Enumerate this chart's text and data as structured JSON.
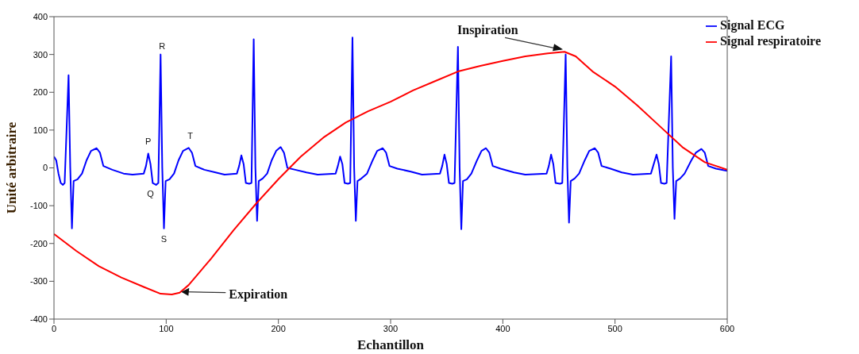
{
  "chart_data": {
    "type": "line",
    "xlabel": "Echantillon",
    "ylabel": "Unité arbitraire",
    "xlim": [
      0,
      600
    ],
    "xticks": [
      0,
      100,
      200,
      300,
      400,
      500,
      600
    ],
    "ylim": [
      -400,
      400
    ],
    "yticks": [
      -400,
      -300,
      -200,
      -100,
      0,
      100,
      200,
      300,
      400
    ],
    "legend": "top right",
    "marker": "none",
    "line_style": "solid",
    "series": [
      {
        "name": "Signal ECG",
        "color": "#0000ff",
        "x": [
          0,
          2,
          4,
          6,
          8,
          9.5,
          13,
          14.5,
          16,
          17.5,
          21,
          25,
          29,
          33,
          38,
          41,
          44,
          52,
          62,
          70,
          80,
          82,
          84,
          86,
          88,
          91,
          93,
          95,
          96.5,
          98,
          99.5,
          103,
          107,
          111,
          115,
          120,
          123,
          126,
          134,
          144,
          152,
          163,
          165,
          167,
          169,
          171,
          174,
          176,
          178,
          179.5,
          181,
          182.5,
          186,
          190,
          194,
          198,
          202,
          205,
          208,
          215,
          225,
          235,
          251,
          253,
          255,
          257,
          259,
          262,
          264,
          266,
          267.5,
          269,
          270.5,
          274,
          279,
          284,
          288,
          293,
          296,
          299,
          306,
          318,
          328,
          344,
          346,
          348,
          350,
          352,
          355,
          357,
          360,
          361.5,
          363,
          364.5,
          368,
          372,
          377,
          381,
          385,
          388,
          391,
          398,
          410,
          420,
          439,
          441,
          443,
          445,
          447,
          451,
          453,
          456,
          457.5,
          459,
          460.5,
          464,
          468,
          473,
          477,
          482,
          485,
          488,
          496,
          506,
          516,
          532,
          534,
          537,
          539,
          541,
          544,
          546,
          550,
          551.5,
          553,
          554.5,
          558,
          562,
          568,
          572,
          577,
          580,
          583,
          590,
          600
        ],
        "values": [
          30,
          20,
          -15,
          -40,
          -45,
          -40,
          245,
          0,
          -160,
          -35,
          -30,
          -15,
          20,
          45,
          52,
          40,
          5,
          -5,
          -15,
          -18,
          -15,
          5,
          38,
          10,
          -40,
          -45,
          -40,
          300,
          0,
          -160,
          -35,
          -30,
          -15,
          20,
          45,
          53,
          40,
          5,
          -5,
          -12,
          -18,
          -15,
          5,
          33,
          10,
          -40,
          -42,
          -40,
          340,
          0,
          -140,
          -35,
          -28,
          -15,
          20,
          45,
          55,
          40,
          0,
          -5,
          -12,
          -18,
          -15,
          5,
          30,
          10,
          -40,
          -42,
          -40,
          345,
          0,
          -140,
          -35,
          -28,
          -15,
          20,
          45,
          52,
          40,
          5,
          -2,
          -10,
          -18,
          -15,
          5,
          35,
          10,
          -40,
          -42,
          -40,
          320,
          0,
          -162,
          -35,
          -30,
          -15,
          20,
          45,
          52,
          40,
          5,
          -2,
          -12,
          -18,
          -15,
          5,
          35,
          10,
          -40,
          -42,
          -40,
          300,
          0,
          -145,
          -35,
          -28,
          -15,
          20,
          45,
          52,
          40,
          5,
          -2,
          -12,
          -18,
          -15,
          5,
          35,
          10,
          -40,
          -42,
          -40,
          295,
          0,
          -135,
          -35,
          -28,
          -15,
          20,
          40,
          50,
          40,
          5,
          -2,
          -8
        ]
      },
      {
        "name": "Signal respiratoire",
        "color": "#ff0000",
        "x": [
          0,
          20,
          40,
          60,
          80,
          95,
          105,
          112,
          120,
          140,
          160,
          180,
          200,
          220,
          240,
          260,
          280,
          300,
          320,
          340,
          360,
          380,
          400,
          420,
          440,
          455,
          465,
          480,
          500,
          520,
          540,
          560,
          580,
          600
        ],
        "values": [
          -175,
          -220,
          -260,
          -290,
          -315,
          -333,
          -335,
          -330,
          -310,
          -240,
          -165,
          -95,
          -30,
          30,
          80,
          120,
          150,
          175,
          205,
          230,
          255,
          270,
          283,
          295,
          303,
          307,
          295,
          255,
          215,
          165,
          110,
          55,
          15,
          -5
        ]
      }
    ],
    "annotations": [
      {
        "text": "P",
        "x": 84,
        "y": 38
      },
      {
        "text": "Q",
        "x": 91,
        "y": -45
      },
      {
        "text": "R",
        "x": 95,
        "y": 300
      },
      {
        "text": "S",
        "x": 98,
        "y": -160
      },
      {
        "text": "T",
        "x": 120,
        "y": 53
      },
      {
        "text": "Expiration",
        "x": 112,
        "y": -330
      },
      {
        "text": "Inspiration",
        "x": 455,
        "y": 307
      }
    ]
  }
}
